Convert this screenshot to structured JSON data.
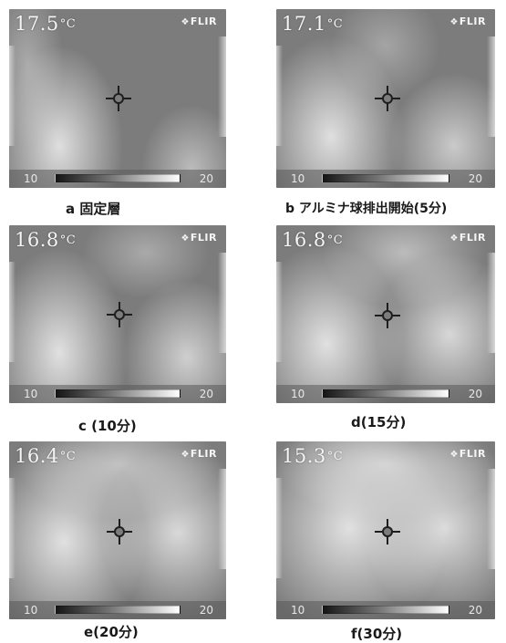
{
  "panels": [
    {
      "id": "a",
      "temperature": "17.5",
      "unit": "°C",
      "brand": "FLIR",
      "scale_min": "10",
      "scale_max": "20",
      "caption": "a 固定層"
    },
    {
      "id": "b",
      "temperature": "17.1",
      "unit": "°C",
      "brand": "FLIR",
      "scale_min": "10",
      "scale_max": "20",
      "caption": "b アルミナ球排出開始(5分)"
    },
    {
      "id": "c",
      "temperature": "16.8",
      "unit": "°C",
      "brand": "FLIR",
      "scale_min": "10",
      "scale_max": "20",
      "caption": "c (10分)"
    },
    {
      "id": "d",
      "temperature": "16.8",
      "unit": "°C",
      "brand": "FLIR",
      "scale_min": "10",
      "scale_max": "20",
      "caption": "d(15分)"
    },
    {
      "id": "e",
      "temperature": "16.4",
      "unit": "°C",
      "brand": "FLIR",
      "scale_min": "10",
      "scale_max": "20",
      "caption": "e(20分)"
    },
    {
      "id": "f",
      "temperature": "15.3",
      "unit": "°C",
      "brand": "FLIR",
      "scale_min": "10",
      "scale_max": "20",
      "caption": "f(30分)"
    }
  ],
  "colors": {
    "frame": "#7c7c7c",
    "hot": "#efefef",
    "text": "#1a1a1a"
  }
}
